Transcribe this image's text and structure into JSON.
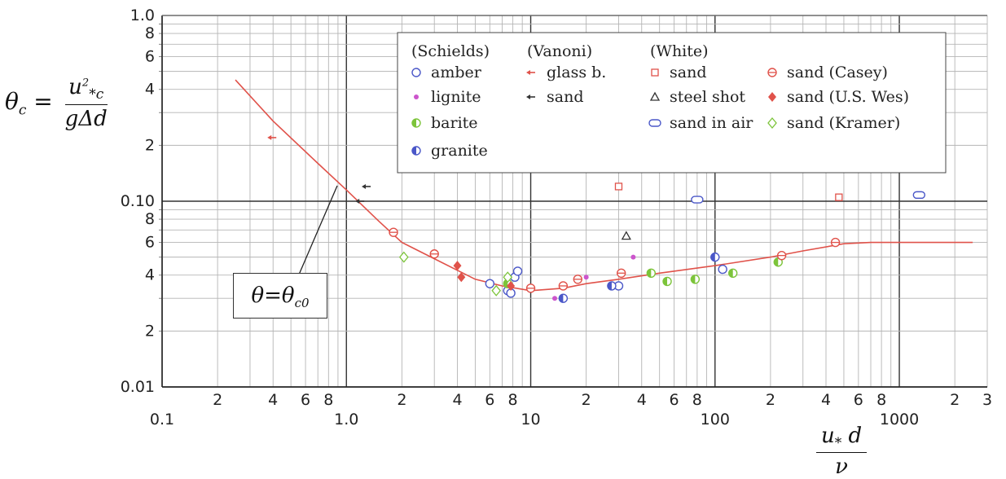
{
  "chart_data": {
    "type": "scatter",
    "xscale": "log",
    "yscale": "log",
    "xlim": [
      0.1,
      3000
    ],
    "ylim": [
      0.01,
      1.0
    ],
    "grid": true,
    "legend_placement": "top-right",
    "y_tick_labels": [
      {
        "v": 1.0,
        "t": "1.0"
      },
      {
        "v": 0.8,
        "t": "8"
      },
      {
        "v": 0.6,
        "t": "6"
      },
      {
        "v": 0.4,
        "t": "4"
      },
      {
        "v": 0.2,
        "t": "2"
      },
      {
        "v": 0.1,
        "t": "0.10"
      },
      {
        "v": 0.08,
        "t": "8"
      },
      {
        "v": 0.06,
        "t": "6"
      },
      {
        "v": 0.04,
        "t": "4"
      },
      {
        "v": 0.02,
        "t": "2"
      },
      {
        "v": 0.01,
        "t": "0.01"
      }
    ],
    "x_tick_labels": [
      {
        "v": 0.1,
        "t": "0.1"
      },
      {
        "v": 0.2,
        "t": "2"
      },
      {
        "v": 0.4,
        "t": "4"
      },
      {
        "v": 0.6,
        "t": "6"
      },
      {
        "v": 0.8,
        "t": "8"
      },
      {
        "v": 1,
        "t": "1.0"
      },
      {
        "v": 2,
        "t": "2"
      },
      {
        "v": 4,
        "t": "4"
      },
      {
        "v": 6,
        "t": "6"
      },
      {
        "v": 8,
        "t": "8"
      },
      {
        "v": 10,
        "t": "10"
      },
      {
        "v": 20,
        "t": "2"
      },
      {
        "v": 40,
        "t": "4"
      },
      {
        "v": 60,
        "t": "6"
      },
      {
        "v": 80,
        "t": "8"
      },
      {
        "v": 100,
        "t": "100"
      },
      {
        "v": 200,
        "t": "2"
      },
      {
        "v": 400,
        "t": "4"
      },
      {
        "v": 600,
        "t": "6"
      },
      {
        "v": 800,
        "t": "8"
      },
      {
        "v": 1000,
        "t": "1000"
      },
      {
        "v": 2000,
        "t": "2"
      },
      {
        "v": 3000,
        "t": "3"
      }
    ],
    "legend_groups": [
      "(Schields)",
      "(Vanoni)",
      "(White)"
    ],
    "curve": {
      "name": "θ = θc0",
      "color": "#e0524a",
      "points": [
        [
          0.25,
          0.45
        ],
        [
          0.4,
          0.27
        ],
        [
          0.7,
          0.16
        ],
        [
          1.0,
          0.115
        ],
        [
          1.5,
          0.078
        ],
        [
          2,
          0.06
        ],
        [
          3,
          0.049
        ],
        [
          5,
          0.038
        ],
        [
          7,
          0.035
        ],
        [
          10,
          0.033
        ],
        [
          15,
          0.034
        ],
        [
          20,
          0.036
        ],
        [
          30,
          0.038
        ],
        [
          50,
          0.041
        ],
        [
          100,
          0.045
        ],
        [
          200,
          0.05
        ],
        [
          300,
          0.054
        ],
        [
          500,
          0.059
        ],
        [
          700,
          0.06
        ],
        [
          1000,
          0.06
        ],
        [
          2000,
          0.06
        ],
        [
          2500,
          0.06
        ]
      ]
    },
    "series": [
      {
        "name": "amber",
        "group": 0,
        "marker": "circle-open",
        "color": "#4a57c8",
        "points": [
          [
            6,
            0.036
          ],
          [
            7.5,
            0.033
          ],
          [
            7.8,
            0.032
          ],
          [
            8.2,
            0.039
          ],
          [
            8.5,
            0.042
          ],
          [
            30,
            0.035
          ],
          [
            110,
            0.043
          ]
        ]
      },
      {
        "name": "lignite",
        "group": 0,
        "marker": "dot",
        "color": "#cc55cc",
        "points": [
          [
            13.5,
            0.03
          ],
          [
            18,
            0.038
          ],
          [
            20,
            0.039
          ],
          [
            36,
            0.05
          ]
        ]
      },
      {
        "name": "barite",
        "group": 0,
        "marker": "half-circle",
        "color": "#7cc43a",
        "points": [
          [
            7.5,
            0.036
          ],
          [
            45,
            0.041
          ],
          [
            55,
            0.037
          ],
          [
            78,
            0.038
          ],
          [
            125,
            0.041
          ],
          [
            220,
            0.047
          ]
        ]
      },
      {
        "name": "granite",
        "group": 0,
        "marker": "half-circle",
        "color": "#4a57c8",
        "points": [
          [
            15,
            0.03
          ],
          [
            27.5,
            0.035
          ],
          [
            100,
            0.05
          ]
        ]
      },
      {
        "name": "glass b.",
        "group": 1,
        "marker": "small-arrow",
        "color": "#e0524a",
        "points": [
          [
            0.4,
            0.22
          ]
        ]
      },
      {
        "name": "sand",
        "group": 1,
        "marker": "small-arrow",
        "color": "#333333",
        "points": [
          [
            1.3,
            0.12
          ],
          [
            1.2,
            0.1
          ]
        ]
      },
      {
        "name": "sand",
        "group": 2,
        "marker": "square-open",
        "color": "#e0524a",
        "points": [
          [
            30,
            0.12
          ],
          [
            470,
            0.105
          ]
        ]
      },
      {
        "name": "steel shot",
        "group": 2,
        "marker": "triangle-open",
        "color": "#333333",
        "points": [
          [
            33,
            0.065
          ]
        ]
      },
      {
        "name": "sand in air",
        "group": 2,
        "marker": "wide-oval",
        "color": "#4a57c8",
        "points": [
          [
            80,
            0.102
          ],
          [
            1280,
            0.108
          ]
        ]
      },
      {
        "name": "sand (Casey)",
        "group": 3,
        "marker": "circle-line",
        "color": "#e0524a",
        "points": [
          [
            1.8,
            0.068
          ],
          [
            3,
            0.052
          ],
          [
            10,
            0.034
          ],
          [
            15,
            0.035
          ],
          [
            18,
            0.038
          ],
          [
            31,
            0.041
          ],
          [
            230,
            0.051
          ],
          [
            450,
            0.06
          ]
        ]
      },
      {
        "name": "sand (U.S. Wes)",
        "group": 3,
        "marker": "diamond-filled",
        "color": "#e0524a",
        "points": [
          [
            4,
            0.045
          ],
          [
            4.2,
            0.039
          ],
          [
            7.8,
            0.035
          ]
        ]
      },
      {
        "name": "sand (Kramer)",
        "group": 3,
        "marker": "diamond-open",
        "color": "#7cc43a",
        "points": [
          [
            2.05,
            0.05
          ],
          [
            6.5,
            0.033
          ],
          [
            7.5,
            0.039
          ]
        ]
      }
    ]
  },
  "labels": {
    "y_lhs": "θ",
    "y_lhs_sub": "c",
    "y_eq": "=",
    "y_num": "u",
    "y_num_sup": "2",
    "y_num_sub": "*c",
    "y_den": "gΔd",
    "x_num": "u",
    "x_num_sub": "*",
    "x_num_d": "d",
    "x_den": "ν",
    "annot_theta": "θ",
    "annot_eq": "=",
    "annot_rhs": "θ",
    "annot_rhs_sub": "c0"
  }
}
